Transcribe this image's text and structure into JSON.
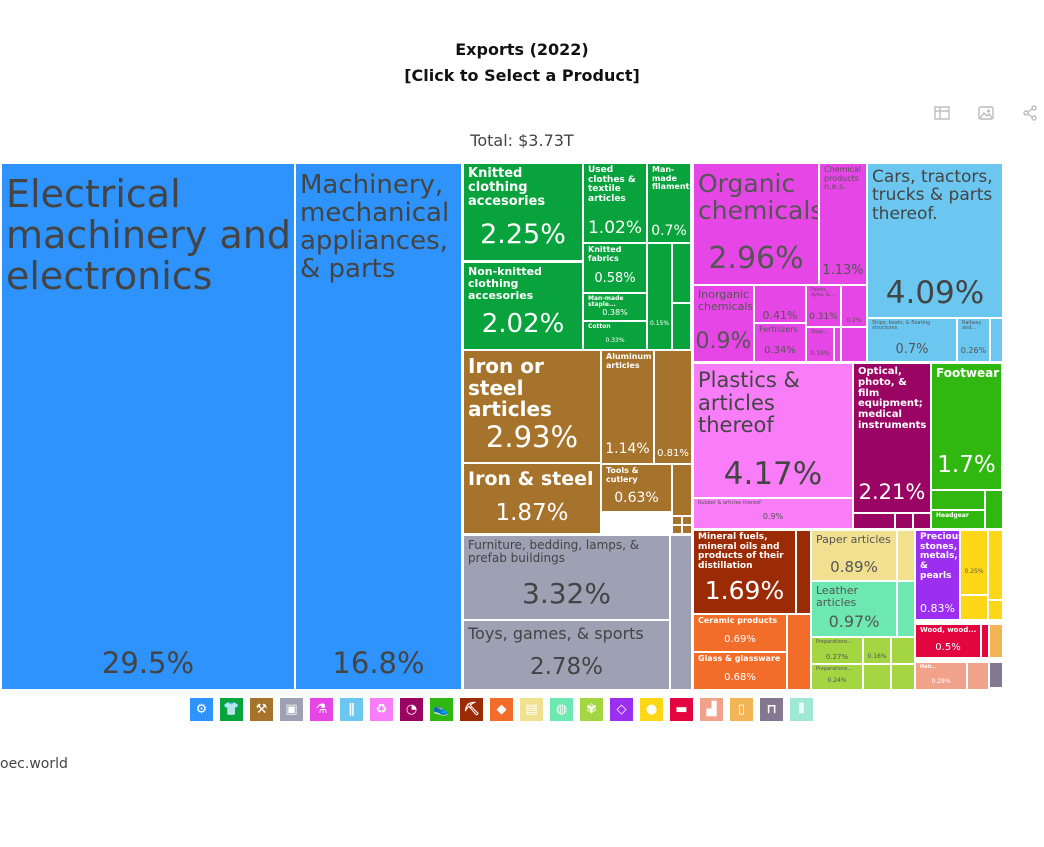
{
  "header": {
    "title_line1": "Exports (2022)",
    "title_line2": "[Click to Select a Product]",
    "total": "Total: $3.73T"
  },
  "toolbar": {
    "icons": [
      "table-icon",
      "image-icon",
      "share-icon"
    ]
  },
  "source": "oec.world",
  "chart_data": {
    "type": "treemap",
    "title": "Exports (2022)",
    "subtitle": "[Click to Select a Product]",
    "total": "$3.73T",
    "tiles": [
      {
        "label": "Electrical machinery and electronics",
        "share": 29.5,
        "value_label": "29.5%",
        "color": "#2f93fd"
      },
      {
        "label": "Machinery, mechanical appliances, & parts",
        "share": 16.8,
        "value_label": "16.8%",
        "color": "#2f93fd"
      },
      {
        "label": "Knitted clothing accesories",
        "share": 2.25,
        "value_label": "2.25%",
        "color": "#09a33d"
      },
      {
        "label": "Non-knitted clothing accesories",
        "share": 2.02,
        "value_label": "2.02%",
        "color": "#09a33d"
      },
      {
        "label": "Used clothes & textile articles",
        "share": 1.02,
        "value_label": "1.02%",
        "color": "#09a33d"
      },
      {
        "label": "Man-made filaments",
        "share": 0.7,
        "value_label": "0.7%",
        "color": "#09a33d"
      },
      {
        "label": "Knitted fabrics",
        "share": 0.58,
        "value_label": "0.58%",
        "color": "#09a33d"
      },
      {
        "label": "Man-made staple...",
        "share": 0.38,
        "value_label": "0.38%",
        "color": "#09a33d"
      },
      {
        "label": "Cotton",
        "share": 0.33,
        "value_label": "0.33%",
        "color": "#09a33d"
      },
      {
        "label": "",
        "share": 0.15,
        "value_label": "0.15%",
        "color": "#09a33d"
      },
      {
        "label": "Iron or steel articles",
        "share": 2.93,
        "value_label": "2.93%",
        "color": "#a5732b"
      },
      {
        "label": "Iron & steel",
        "share": 1.87,
        "value_label": "1.87%",
        "color": "#a5732b"
      },
      {
        "label": "Aluminum articles",
        "share": 1.14,
        "value_label": "1.14%",
        "color": "#a5732b"
      },
      {
        "label": "",
        "share": 0.81,
        "value_label": "0.81%",
        "color": "#a5732b"
      },
      {
        "label": "Tools & cutlery",
        "share": 0.63,
        "value_label": "0.63%",
        "color": "#a5732b"
      },
      {
        "label": "Furniture, bedding, lamps, & prefab buildings",
        "share": 3.32,
        "value_label": "3.32%",
        "color": "#9da1b3"
      },
      {
        "label": "Toys, games, & sports",
        "share": 2.78,
        "value_label": "2.78%",
        "color": "#9da1b3"
      },
      {
        "label": "Organic chemicals",
        "share": 2.96,
        "value_label": "2.96%",
        "color": "#e646e6"
      },
      {
        "label": "Chemical products n.e.s.",
        "share": 1.13,
        "value_label": "1.13%",
        "color": "#e646e6"
      },
      {
        "label": "Inorganic chemicals",
        "share": 0.9,
        "value_label": "0.9%",
        "color": "#e646e6"
      },
      {
        "label": "",
        "share": 0.41,
        "value_label": "0.41%",
        "color": "#e646e6"
      },
      {
        "label": "Fertilizers",
        "share": 0.34,
        "value_label": "0.34%",
        "color": "#e646e6"
      },
      {
        "label": "Paints, dyes, &...",
        "share": 0.31,
        "value_label": "0.31%",
        "color": "#e646e6"
      },
      {
        "label": "Soap...",
        "share": 0.19,
        "value_label": "0.19%",
        "color": "#e646e6"
      },
      {
        "label": "",
        "share": 0.2,
        "value_label": "0.2%",
        "color": "#e646e6"
      },
      {
        "label": "Cars, tractors, trucks & parts thereof.",
        "share": 4.09,
        "value_label": "4.09%",
        "color": "#6bc7f0"
      },
      {
        "label": "Ships, boats, & floating structures",
        "share": 0.7,
        "value_label": "0.7%",
        "color": "#6bc7f0"
      },
      {
        "label": "Railway and...",
        "share": 0.26,
        "value_label": "0.26%",
        "color": "#6bc7f0"
      },
      {
        "label": "Plastics & articles thereof",
        "share": 4.17,
        "value_label": "4.17%",
        "color": "#f97df9"
      },
      {
        "label": "Rubber & articles thereof",
        "share": 0.9,
        "value_label": "0.9%",
        "color": "#f97df9"
      },
      {
        "label": "Optical, photo, & film equipment; medical instruments",
        "share": 2.21,
        "value_label": "2.21%",
        "color": "#9a0463"
      },
      {
        "label": "Footwear",
        "share": 1.7,
        "value_label": "1.7%",
        "color": "#30b811"
      },
      {
        "label": "Headgear",
        "share": null,
        "value_label": "",
        "color": "#30b811"
      },
      {
        "label": "Mineral fuels, mineral oils and products of their distillation",
        "share": 1.69,
        "value_label": "1.69%",
        "color": "#9b2b05"
      },
      {
        "label": "Ceramic products",
        "share": 0.69,
        "value_label": "0.69%",
        "color": "#f36d2a"
      },
      {
        "label": "Glass & glassware",
        "share": 0.68,
        "value_label": "0.68%",
        "color": "#f36d2a"
      },
      {
        "label": "Paper articles",
        "share": 0.89,
        "value_label": "0.89%",
        "color": "#f0e090"
      },
      {
        "label": "Leather articles",
        "share": 0.97,
        "value_label": "0.97%",
        "color": "#6de8b1"
      },
      {
        "label": "Preparations...",
        "share": 0.27,
        "value_label": "0.27%",
        "color": "#a4d643"
      },
      {
        "label": "",
        "share": 0.16,
        "value_label": "0.16%",
        "color": "#a4d643"
      },
      {
        "label": "Preparations...",
        "share": 0.24,
        "value_label": "0.24%",
        "color": "#a4d643"
      },
      {
        "label": "Precious stones, metals, & pearls",
        "share": 0.83,
        "value_label": "0.83%",
        "color": "#9c2fef"
      },
      {
        "label": "",
        "share": 0.25,
        "value_label": "0.25%",
        "color": "#fed818"
      },
      {
        "label": "Wood, wood...",
        "share": 0.5,
        "value_label": "0.5%",
        "color": "#e3053f"
      },
      {
        "label": "Hair...",
        "share": 0.29,
        "value_label": "0.29%",
        "color": "#f0a38a"
      }
    ],
    "legend": [
      {
        "name": "machinery",
        "color": "#2f93fd",
        "icon": "gear-icon",
        "glyph": "⚙"
      },
      {
        "name": "textiles",
        "color": "#09a33d",
        "icon": "shirt-icon",
        "glyph": "👕"
      },
      {
        "name": "metals",
        "color": "#a5732b",
        "icon": "anvil-icon",
        "glyph": "⚒"
      },
      {
        "name": "miscellaneous",
        "color": "#9da1b3",
        "icon": "box-icon",
        "glyph": "▣"
      },
      {
        "name": "chemical-products",
        "color": "#e646e6",
        "icon": "flask-icon",
        "glyph": "⚗"
      },
      {
        "name": "transportation",
        "color": "#6bc7f0",
        "icon": "road-icon",
        "glyph": "∥"
      },
      {
        "name": "plastics-rubbers",
        "color": "#f97df9",
        "icon": "recycle-icon",
        "glyph": "♻"
      },
      {
        "name": "instruments",
        "color": "#9a0463",
        "icon": "gauge-icon",
        "glyph": "◔"
      },
      {
        "name": "footwear-headwear",
        "color": "#30b811",
        "icon": "shoe-icon",
        "glyph": "👟"
      },
      {
        "name": "mineral-products",
        "color": "#9b2b05",
        "icon": "pickaxe-icon",
        "glyph": "⛏"
      },
      {
        "name": "stone-glass",
        "color": "#f36d2a",
        "icon": "stone-icon",
        "glyph": "◆"
      },
      {
        "name": "paper-goods",
        "color": "#f0e090",
        "icon": "paper-icon",
        "glyph": "▤"
      },
      {
        "name": "animal-hides",
        "color": "#6de8b1",
        "icon": "hide-icon",
        "glyph": "◍"
      },
      {
        "name": "vegetable-products",
        "color": "#a4d643",
        "icon": "wheat-icon",
        "glyph": "✾"
      },
      {
        "name": "precious-metals",
        "color": "#9c2fef",
        "icon": "diamond-icon",
        "glyph": "◇"
      },
      {
        "name": "foodstuffs",
        "color": "#fed818",
        "icon": "fruit-icon",
        "glyph": "●"
      },
      {
        "name": "weapons",
        "color": "#e3053f",
        "icon": "gun-icon",
        "glyph": "▬"
      },
      {
        "name": "animal-products",
        "color": "#f0a38a",
        "icon": "animal-icon",
        "glyph": "▟"
      },
      {
        "name": "animal-vegetable-bi-products",
        "color": "#f3b455",
        "icon": "bottle-icon",
        "glyph": "▯"
      },
      {
        "name": "arts-antiques",
        "color": "#847890",
        "icon": "easel-icon",
        "glyph": "⊓"
      },
      {
        "name": "wood-products",
        "color": "#a0e8d4",
        "icon": "logs-icon",
        "glyph": "⦀"
      }
    ]
  }
}
